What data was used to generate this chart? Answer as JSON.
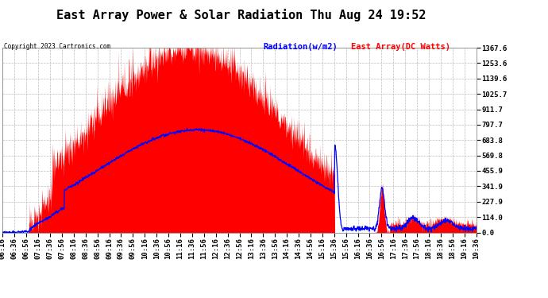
{
  "title": "East Array Power & Solar Radiation Thu Aug 24 19:52",
  "copyright": "Copyright 2023 Cartronics.com",
  "legend_radiation": "Radiation(w/m2)",
  "legend_east": "East Array(DC Watts)",
  "legend_radiation_color": "blue",
  "legend_east_color": "red",
  "ymin": 0.0,
  "ymax": 1367.6,
  "yticks": [
    0.0,
    114.0,
    227.9,
    341.9,
    455.9,
    569.8,
    683.8,
    797.7,
    911.7,
    1025.7,
    1139.6,
    1253.6,
    1367.6
  ],
  "background_color": "#ffffff",
  "plot_bg_color": "#ffffff",
  "grid_color": "#bbbbbb",
  "title_fontsize": 11,
  "tick_fontsize": 6.5
}
